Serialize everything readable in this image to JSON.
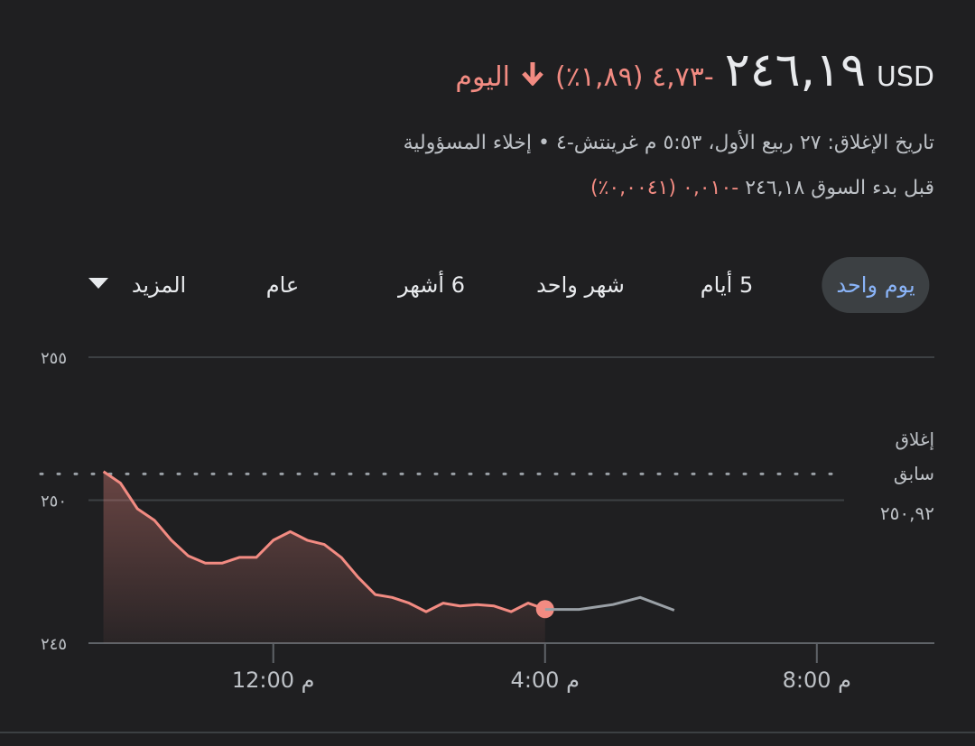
{
  "header": {
    "currency": "USD",
    "price": "٢٤٦,١٩",
    "change": "‎-٤,٧٣ (١,٨٩٪)",
    "period": "اليوم",
    "closing_info": "تاريخ الإغلاق: ٢٧ ربيع الأول، ٥:٥٣ م غرينتش-٤ • إخلاء المسؤولية",
    "pre_market_label": "قبل بدء السوق",
    "pre_market_price": "٢٤٦,١٨",
    "pre_market_change": "‎-٠,٠١٠ (٠,٠٠٤١٪)"
  },
  "tabs": [
    "يوم واحد",
    "5 أيام",
    "شهر واحد",
    "6 أشهر",
    "عام",
    "المزيد"
  ],
  "selected_tab": 0,
  "chart_data": {
    "type": "line",
    "xlim": [
      9.28,
      21.73
    ],
    "xticks": [
      {
        "value": 12,
        "label": "12:00 م"
      },
      {
        "value": 16,
        "label": "4:00 م"
      },
      {
        "value": 20,
        "label": "8:00 م"
      }
    ],
    "ylim": [
      245,
      255
    ],
    "yticks": [
      {
        "value": 245,
        "label": "٢٤٥"
      },
      {
        "value": 250,
        "label": "٢٥٠"
      },
      {
        "value": 255,
        "label": "٢٥٥"
      }
    ],
    "grid": true,
    "series": [
      {
        "color": "#f28b82",
        "x": [
          9.5,
          9.75,
          10,
          10.25,
          10.5,
          10.75,
          11,
          11.25,
          11.5,
          11.75,
          12,
          12.25,
          12.5,
          12.75,
          13,
          13.25,
          13.5,
          13.75,
          14,
          14.25,
          14.5,
          14.75,
          15,
          15.25,
          15.5,
          15.75,
          16
        ],
        "values": [
          251.0,
          250.6,
          249.7,
          249.3,
          248.6,
          248.05,
          247.8,
          247.8,
          248.0,
          248.0,
          248.6,
          248.9,
          248.6,
          248.45,
          248.0,
          247.3,
          246.7,
          246.6,
          246.4,
          246.1,
          246.4,
          246.3,
          246.35,
          246.3,
          246.1,
          246.4,
          246.19
        ]
      },
      {
        "color": "#9aa0a6",
        "x": [
          16,
          16.5,
          17,
          17.4,
          17.9
        ],
        "values": [
          246.18,
          246.18,
          246.35,
          246.6,
          246.15
        ]
      }
    ],
    "previous_close": {
      "value": 250.92,
      "label_lines": [
        "إغلاق",
        "سابق"
      ],
      "value_label": "٢٥٠,٩٢"
    }
  }
}
